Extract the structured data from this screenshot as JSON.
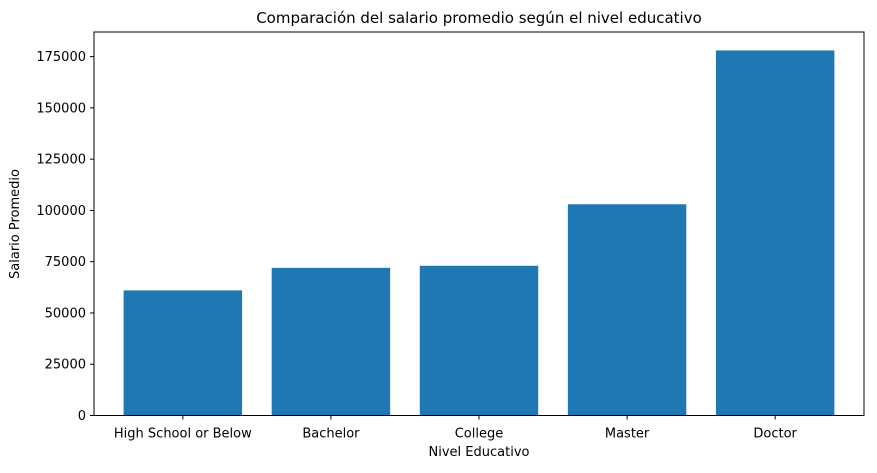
{
  "chart_data": {
    "type": "bar",
    "title": "Comparación del salario promedio según el nivel educativo",
    "xlabel": "Nivel Educativo",
    "ylabel": "Salario Promedio",
    "categories": [
      "High School or Below",
      "Bachelor",
      "College",
      "Master",
      "Doctor"
    ],
    "values": [
      61000,
      72000,
      73000,
      103000,
      178000
    ],
    "ylim": [
      0,
      187000
    ],
    "yticks": [
      0,
      25000,
      50000,
      75000,
      100000,
      125000,
      150000,
      175000
    ],
    "grid": false,
    "bar_color": "#1f77b4"
  }
}
